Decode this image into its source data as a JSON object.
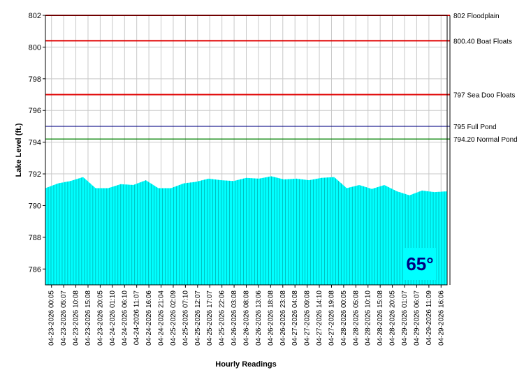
{
  "chart_data": {
    "type": "area",
    "xlabel": "Hourly Readings",
    "ylabel": "Lake Level (ft.)",
    "ylim": [
      785,
      802
    ],
    "yticks": [
      "786",
      "788",
      "790",
      "792",
      "794",
      "796",
      "798",
      "800",
      "802"
    ],
    "grid": true,
    "fill_color": "#00ffff",
    "categories": [
      "04-23-2026 00:05",
      "04-23-2026 05:07",
      "04-23-2026 10:08",
      "04-23-2026 15:08",
      "04-23-2026 20:05",
      "04-24-2026 01:10",
      "04-24-2026 06:10",
      "04-24-2026 11:07",
      "04-24-2026 16:06",
      "04-24-2026 21:04",
      "04-25-2026 02:09",
      "04-25-2026 07:10",
      "04-25-2026 12:07",
      "04-25-2026 17:07",
      "04-25-2026 22:06",
      "04-26-2026 03:08",
      "04-26-2026 08:08",
      "04-26-2026 13:06",
      "04-26-2026 18:08",
      "04-26-2026 23:08",
      "04-27-2026 04:08",
      "04-27-2026 09:08",
      "04-27-2026 14:10",
      "04-27-2026 19:08",
      "04-28-2026 00:05",
      "04-28-2026 05:08",
      "04-28-2026 10:10",
      "04-28-2026 15:08",
      "04-28-2026 20:05",
      "04-29-2026 01:07",
      "04-29-2026 06:07",
      "04-29-2026 11:09",
      "04-29-2026 16:06"
    ],
    "values": [
      791.1,
      791.4,
      791.55,
      791.8,
      791.1,
      791.1,
      791.35,
      791.3,
      791.6,
      791.1,
      791.1,
      791.4,
      791.5,
      791.7,
      791.6,
      791.55,
      791.75,
      791.7,
      791.85,
      791.65,
      791.7,
      791.6,
      791.75,
      791.8,
      791.1,
      791.3,
      791.05,
      791.3,
      790.9,
      790.65,
      790.95,
      790.85,
      790.9
    ],
    "reference_lines": [
      {
        "value": 802,
        "label": "802 Floodplain",
        "color": "#e00000"
      },
      {
        "value": 800.4,
        "label": "800.40 Boat Floats",
        "color": "#e00000"
      },
      {
        "value": 797,
        "label": "797 Sea Doo Floats",
        "color": "#e00000"
      },
      {
        "value": 795,
        "label": "795 Full Pond",
        "color": "#000080"
      },
      {
        "value": 794.2,
        "label": "794.20 Normal Pond",
        "color": "#008000"
      }
    ]
  },
  "temperature": "65°"
}
